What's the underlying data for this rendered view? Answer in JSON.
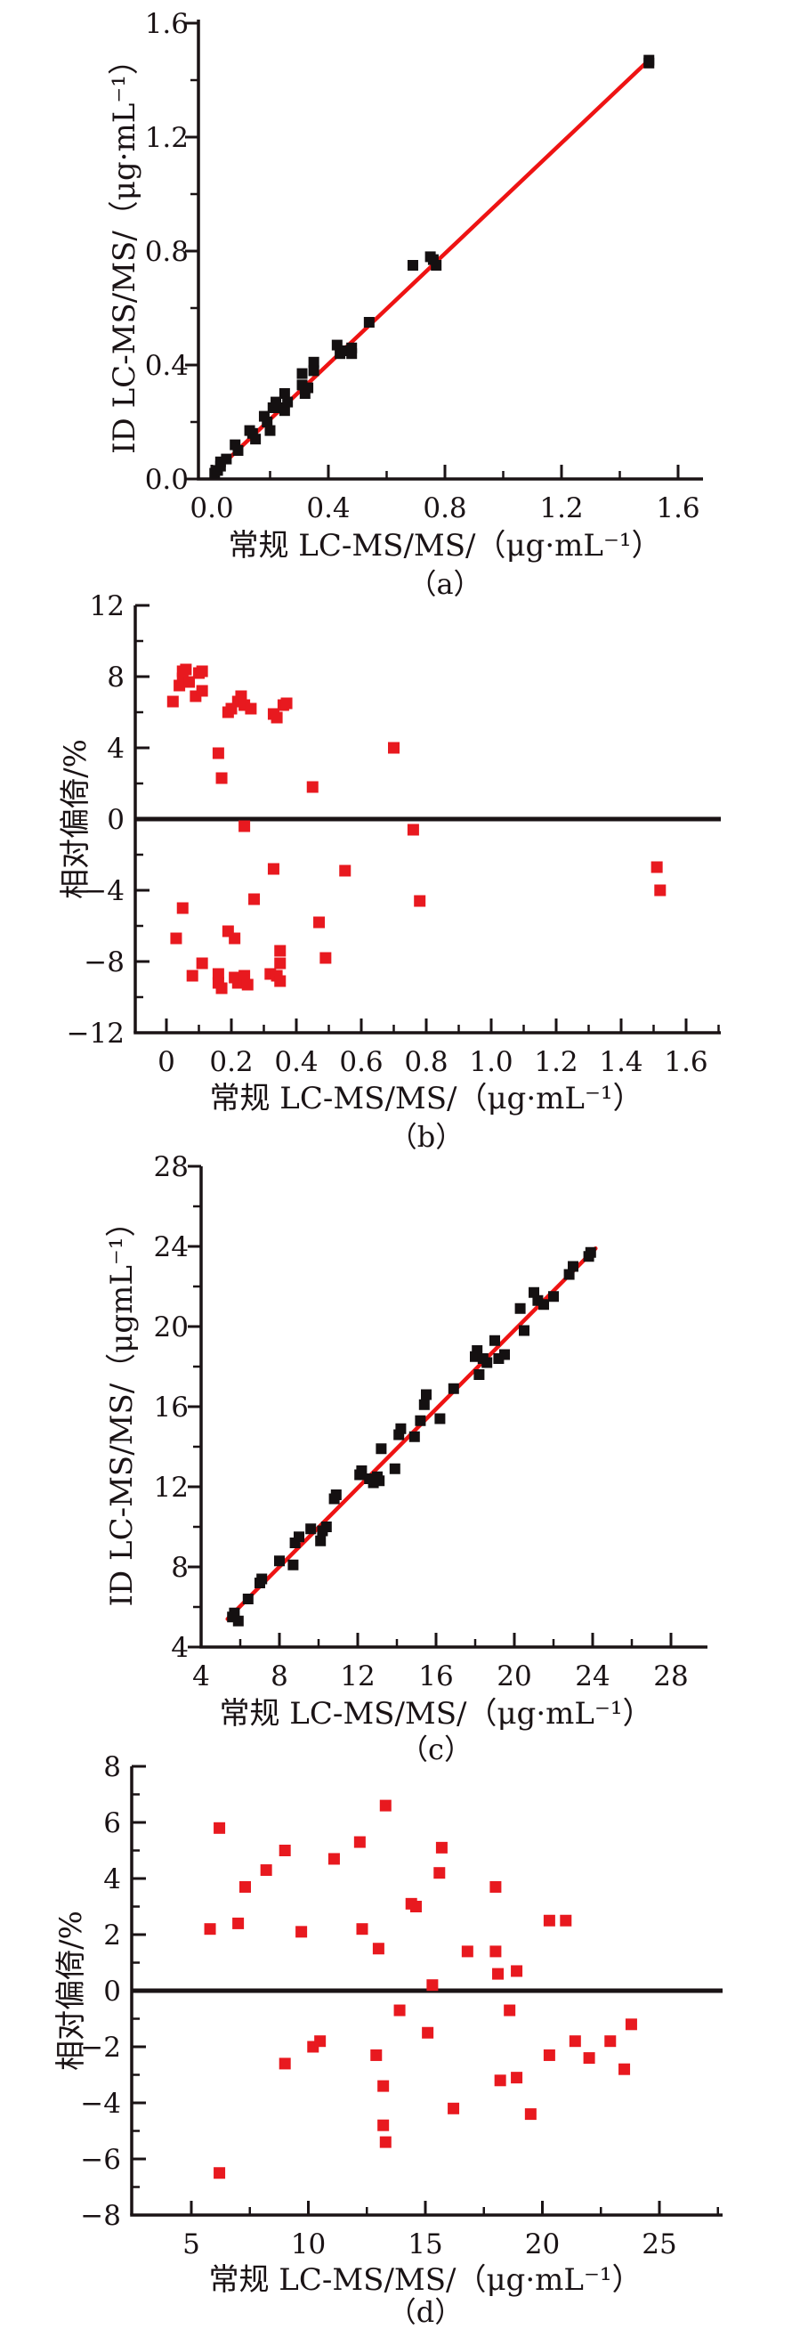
{
  "figure": {
    "background": "#ffffff",
    "axis_color": "#1a1315",
    "marker_black": "#141011",
    "marker_red": "#e8191f",
    "line_red": "#ee1313",
    "captions": {
      "a": "（a）",
      "b": "（b）",
      "c": "（c）",
      "d": "（d）"
    }
  },
  "chart_data": [
    {
      "id": "a",
      "type": "scatter",
      "caption": "（a）",
      "xlabel": "常规 LC-MS/MS/（μg·mL⁻¹）",
      "ylabel": "ID LC-MS/MS/（μg·mL⁻¹）",
      "xlim": [
        0,
        1.6
      ],
      "ylim": [
        0,
        1.6
      ],
      "grid": false,
      "x_axis": {
        "ticks": [
          0,
          0.4,
          0.8,
          1.2,
          1.6
        ],
        "tick_labels": [
          "0.0",
          "0.4",
          "0.8",
          "1.2",
          "1.6"
        ],
        "minor_step": 0.2
      },
      "y_axis": {
        "ticks": [
          0,
          0.4,
          0.8,
          1.2,
          1.6
        ],
        "tick_labels": [
          "0.0",
          "0.4",
          "0.8",
          "1.2",
          "1.6"
        ],
        "minor_step": 0.2
      },
      "marker_color": "#141011",
      "marker_size": 12,
      "fit_line": {
        "color": "#ee1313",
        "x1": 0.005,
        "y1": 0.02,
        "x2": 1.51,
        "y2": 1.48
      },
      "zero_line": false,
      "points": [
        [
          0.01,
          0.02
        ],
        [
          0.02,
          0.03
        ],
        [
          0.03,
          0.045
        ],
        [
          0.03,
          0.06
        ],
        [
          0.05,
          0.07
        ],
        [
          0.08,
          0.12
        ],
        [
          0.09,
          0.1
        ],
        [
          0.13,
          0.17
        ],
        [
          0.14,
          0.16
        ],
        [
          0.15,
          0.14
        ],
        [
          0.18,
          0.22
        ],
        [
          0.19,
          0.2
        ],
        [
          0.2,
          0.17
        ],
        [
          0.21,
          0.25
        ],
        [
          0.22,
          0.27
        ],
        [
          0.23,
          0.25
        ],
        [
          0.25,
          0.3
        ],
        [
          0.25,
          0.24
        ],
        [
          0.26,
          0.27
        ],
        [
          0.31,
          0.37
        ],
        [
          0.31,
          0.33
        ],
        [
          0.32,
          0.3
        ],
        [
          0.33,
          0.32
        ],
        [
          0.35,
          0.41
        ],
        [
          0.35,
          0.38
        ],
        [
          0.43,
          0.47
        ],
        [
          0.44,
          0.44
        ],
        [
          0.46,
          0.45
        ],
        [
          0.48,
          0.46
        ],
        [
          0.48,
          0.44
        ],
        [
          0.54,
          0.55
        ],
        [
          0.69,
          0.75
        ],
        [
          0.75,
          0.78
        ],
        [
          0.76,
          0.77
        ],
        [
          0.77,
          0.75
        ],
        [
          1.5,
          1.46
        ],
        [
          1.5,
          1.47
        ]
      ]
    },
    {
      "id": "b",
      "type": "scatter",
      "caption": "（b）",
      "xlabel": "常规 LC-MS/MS/（μg·mL⁻¹）",
      "ylabel": "相对偏倚/%",
      "xlim": [
        0,
        1.6
      ],
      "ylim": [
        -12,
        12
      ],
      "grid": false,
      "x_axis": {
        "ticks": [
          0,
          0.2,
          0.4,
          0.6,
          0.8,
          1.0,
          1.2,
          1.4,
          1.6
        ],
        "tick_labels": [
          "0",
          "0.2",
          "0.4",
          "0.6",
          "0.8",
          "1.0",
          "1.2",
          "1.4",
          "1.6"
        ],
        "minor_step": 0.1
      },
      "y_axis": {
        "ticks": [
          -12,
          -8,
          -4,
          0,
          4,
          8,
          12
        ],
        "tick_labels": [
          "−12",
          "−8",
          "−4",
          "0",
          "4",
          "8",
          "12"
        ],
        "minor_step": 2
      },
      "marker_color": "#e8191f",
      "marker_size": 13,
      "fit_line": null,
      "zero_line": true,
      "points": [
        [
          0.02,
          6.6
        ],
        [
          0.04,
          7.5
        ],
        [
          0.05,
          7.9
        ],
        [
          0.05,
          8.3
        ],
        [
          0.06,
          8.4
        ],
        [
          0.07,
          7.7
        ],
        [
          0.09,
          6.9
        ],
        [
          0.1,
          8.2
        ],
        [
          0.11,
          8.3
        ],
        [
          0.11,
          7.2
        ],
        [
          0.16,
          3.7
        ],
        [
          0.17,
          2.3
        ],
        [
          0.19,
          6.0
        ],
        [
          0.2,
          6.2
        ],
        [
          0.22,
          6.6
        ],
        [
          0.23,
          6.9
        ],
        [
          0.24,
          6.4
        ],
        [
          0.26,
          6.2
        ],
        [
          0.33,
          5.9
        ],
        [
          0.34,
          5.7
        ],
        [
          0.36,
          6.4
        ],
        [
          0.37,
          6.5
        ],
        [
          0.45,
          1.8
        ],
        [
          0.7,
          4.0
        ],
        [
          0.24,
          -0.4
        ],
        [
          0.76,
          -0.6
        ],
        [
          0.03,
          -6.7
        ],
        [
          0.05,
          -5.0
        ],
        [
          0.08,
          -8.8
        ],
        [
          0.11,
          -8.1
        ],
        [
          0.16,
          -8.7
        ],
        [
          0.16,
          -9.2
        ],
        [
          0.17,
          -9.5
        ],
        [
          0.19,
          -6.3
        ],
        [
          0.21,
          -6.7
        ],
        [
          0.21,
          -8.9
        ],
        [
          0.22,
          -9.2
        ],
        [
          0.24,
          -8.8
        ],
        [
          0.25,
          -9.3
        ],
        [
          0.27,
          -4.5
        ],
        [
          0.32,
          -8.7
        ],
        [
          0.33,
          -2.8
        ],
        [
          0.34,
          -8.8
        ],
        [
          0.35,
          -9.1
        ],
        [
          0.35,
          -7.4
        ],
        [
          0.35,
          -8.1
        ],
        [
          0.47,
          -5.8
        ],
        [
          0.49,
          -7.8
        ],
        [
          0.55,
          -2.9
        ],
        [
          0.78,
          -4.6
        ],
        [
          1.51,
          -2.7
        ],
        [
          1.52,
          -4.0
        ]
      ]
    },
    {
      "id": "c",
      "type": "scatter",
      "caption": "（c）",
      "xlabel": "常规 LC-MS/MS/（μg·mL⁻¹）",
      "ylabel": "ID LC-MS/MS/（μgmL⁻¹）",
      "xlim": [
        4,
        28
      ],
      "ylim": [
        4,
        28
      ],
      "grid": false,
      "x_axis": {
        "ticks": [
          4,
          8,
          12,
          16,
          20,
          24,
          28
        ],
        "tick_labels": [
          "4",
          "8",
          "12",
          "16",
          "20",
          "24",
          "28"
        ],
        "minor_step": 2
      },
      "y_axis": {
        "ticks": [
          4,
          8,
          12,
          16,
          20,
          24,
          28
        ],
        "tick_labels": [
          "4",
          "8",
          "12",
          "16",
          "20",
          "24",
          "28"
        ],
        "minor_step": 2
      },
      "marker_color": "#141011",
      "marker_size": 12,
      "fit_line": {
        "color": "#ee1313",
        "x1": 5.35,
        "y1": 5.4,
        "x2": 24.15,
        "y2": 23.9
      },
      "zero_line": false,
      "points": [
        [
          5.6,
          5.5
        ],
        [
          5.7,
          5.7
        ],
        [
          5.9,
          5.3
        ],
        [
          6.4,
          6.4
        ],
        [
          7.0,
          7.2
        ],
        [
          7.1,
          7.4
        ],
        [
          8.0,
          8.3
        ],
        [
          8.7,
          8.1
        ],
        [
          8.8,
          9.2
        ],
        [
          9.0,
          9.5
        ],
        [
          9.6,
          9.9
        ],
        [
          10.1,
          9.3
        ],
        [
          10.2,
          9.8
        ],
        [
          10.4,
          10.0
        ],
        [
          10.8,
          11.4
        ],
        [
          10.9,
          11.6
        ],
        [
          12.1,
          12.6
        ],
        [
          12.2,
          12.8
        ],
        [
          12.6,
          12.4
        ],
        [
          12.8,
          12.2
        ],
        [
          13.0,
          12.5
        ],
        [
          13.1,
          12.3
        ],
        [
          13.2,
          13.9
        ],
        [
          13.9,
          12.9
        ],
        [
          14.1,
          14.6
        ],
        [
          14.2,
          14.9
        ],
        [
          14.9,
          14.5
        ],
        [
          15.2,
          15.3
        ],
        [
          15.4,
          16.1
        ],
        [
          15.5,
          16.6
        ],
        [
          16.2,
          15.4
        ],
        [
          16.9,
          16.9
        ],
        [
          18.0,
          18.5
        ],
        [
          18.1,
          18.8
        ],
        [
          18.2,
          17.6
        ],
        [
          18.4,
          18.4
        ],
        [
          18.6,
          18.2
        ],
        [
          19.0,
          19.3
        ],
        [
          19.2,
          18.4
        ],
        [
          19.5,
          18.6
        ],
        [
          20.3,
          20.9
        ],
        [
          20.5,
          19.8
        ],
        [
          21.0,
          21.7
        ],
        [
          21.2,
          21.3
        ],
        [
          21.5,
          21.1
        ],
        [
          22.0,
          21.5
        ],
        [
          22.8,
          22.6
        ],
        [
          23.0,
          23.0
        ],
        [
          23.8,
          23.5
        ],
        [
          23.9,
          23.7
        ]
      ]
    },
    {
      "id": "d",
      "type": "scatter",
      "caption": "（d）",
      "xlabel": "常规 LC-MS/MS/（μg·mL⁻¹）",
      "ylabel": "相对偏倚/%",
      "xlim": [
        5,
        25
      ],
      "ylim": [
        -8,
        8
      ],
      "grid": false,
      "x_axis": {
        "ticks": [
          5,
          10,
          15,
          20,
          25
        ],
        "tick_labels": [
          "5",
          "10",
          "15",
          "20",
          "25"
        ],
        "minor_step": 2.5
      },
      "y_axis": {
        "ticks": [
          -8,
          -6,
          -4,
          -2,
          0,
          2,
          4,
          6,
          8
        ],
        "tick_labels": [
          "−8",
          "−6",
          "−4",
          "−2",
          "0",
          "2",
          "4",
          "6",
          "8"
        ],
        "minor_step": 1
      },
      "marker_color": "#e8191f",
      "marker_size": 13,
      "fit_line": null,
      "zero_line": true,
      "points": [
        [
          5.8,
          2.2
        ],
        [
          6.2,
          5.8
        ],
        [
          6.2,
          -6.5
        ],
        [
          7.0,
          2.4
        ],
        [
          7.3,
          3.7
        ],
        [
          8.2,
          4.3
        ],
        [
          9.0,
          5.0
        ],
        [
          9.0,
          -2.6
        ],
        [
          9.7,
          2.1
        ],
        [
          10.2,
          -2.0
        ],
        [
          10.5,
          -1.8
        ],
        [
          11.1,
          4.7
        ],
        [
          12.2,
          5.3
        ],
        [
          12.3,
          2.2
        ],
        [
          12.9,
          -2.3
        ],
        [
          13.0,
          1.5
        ],
        [
          13.3,
          6.6
        ],
        [
          13.2,
          -3.4
        ],
        [
          13.2,
          -4.8
        ],
        [
          13.3,
          -5.4
        ],
        [
          13.9,
          -0.7
        ],
        [
          14.4,
          3.1
        ],
        [
          14.6,
          3.0
        ],
        [
          15.1,
          -1.5
        ],
        [
          15.3,
          0.2
        ],
        [
          15.6,
          4.2
        ],
        [
          15.7,
          5.1
        ],
        [
          16.2,
          -4.2
        ],
        [
          16.8,
          1.4
        ],
        [
          18.0,
          3.7
        ],
        [
          18.0,
          1.4
        ],
        [
          18.1,
          0.6
        ],
        [
          18.2,
          -3.2
        ],
        [
          18.6,
          -0.7
        ],
        [
          18.9,
          0.7
        ],
        [
          18.9,
          -3.1
        ],
        [
          19.5,
          -4.4
        ],
        [
          20.3,
          -2.3
        ],
        [
          20.3,
          2.5
        ],
        [
          21.0,
          2.5
        ],
        [
          21.4,
          -1.8
        ],
        [
          22.0,
          -2.4
        ],
        [
          22.9,
          -1.8
        ],
        [
          23.5,
          -2.8
        ],
        [
          23.8,
          -1.2
        ]
      ]
    }
  ]
}
